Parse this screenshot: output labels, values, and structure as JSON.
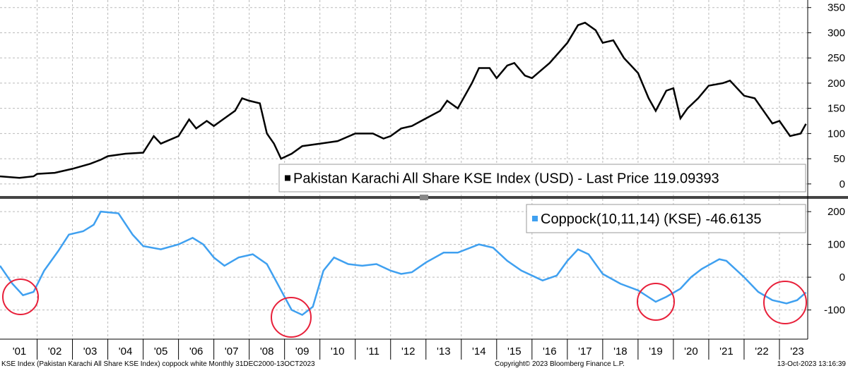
{
  "chart_data": [
    {
      "type": "line",
      "xlim": [
        2000.95,
        2023.8
      ],
      "ylim": [
        -24,
        365
      ],
      "yticks": [
        0,
        50,
        100,
        150,
        200,
        250,
        300,
        350
      ],
      "grid": true,
      "series": [
        {
          "name": "Pakistan Karachi All Share KSE Index (USD) - Last Price",
          "color": "#000000",
          "x": [
            2000.95,
            2001.5,
            2001.9,
            2002.0,
            2002.5,
            2003.0,
            2003.5,
            2003.8,
            2004.0,
            2004.5,
            2005.0,
            2005.3,
            2005.5,
            2006.0,
            2006.3,
            2006.5,
            2006.8,
            2007.0,
            2007.3,
            2007.6,
            2007.8,
            2008.0,
            2008.3,
            2008.5,
            2008.7,
            2008.9,
            2009.2,
            2009.5,
            2010.0,
            2010.5,
            2011.0,
            2011.5,
            2011.8,
            2012.0,
            2012.3,
            2012.6,
            2013.0,
            2013.4,
            2013.6,
            2013.9,
            2014.3,
            2014.5,
            2014.8,
            2015.0,
            2015.3,
            2015.5,
            2015.8,
            2016.0,
            2016.5,
            2017.0,
            2017.3,
            2017.5,
            2017.8,
            2018.0,
            2018.3,
            2018.6,
            2019.0,
            2019.3,
            2019.5,
            2019.8,
            2020.0,
            2020.2,
            2020.4,
            2020.7,
            2021.0,
            2021.4,
            2021.6,
            2022.0,
            2022.3,
            2022.6,
            2022.8,
            2023.0,
            2023.3,
            2023.6,
            2023.75
          ],
          "values": [
            15,
            12,
            15,
            20,
            22,
            30,
            40,
            48,
            55,
            60,
            62,
            95,
            80,
            95,
            128,
            110,
            125,
            115,
            130,
            145,
            170,
            165,
            160,
            100,
            80,
            50,
            60,
            75,
            80,
            85,
            100,
            100,
            90,
            95,
            110,
            115,
            130,
            145,
            165,
            150,
            200,
            230,
            230,
            210,
            235,
            240,
            215,
            210,
            240,
            280,
            315,
            320,
            305,
            280,
            285,
            250,
            220,
            170,
            145,
            185,
            190,
            130,
            150,
            170,
            195,
            200,
            205,
            175,
            170,
            140,
            120,
            125,
            95,
            100,
            119.09393
          ]
        }
      ]
    },
    {
      "type": "line",
      "xlim": [
        2000.95,
        2023.8
      ],
      "ylim": [
        -189,
        239
      ],
      "yticks": [
        -100,
        0,
        100,
        200
      ],
      "grid": true,
      "xticks": [
        {
          "value": 2001.5,
          "label": "'01"
        },
        {
          "value": 2002.5,
          "label": "'02"
        },
        {
          "value": 2003.5,
          "label": "'03"
        },
        {
          "value": 2004.5,
          "label": "'04"
        },
        {
          "value": 2005.5,
          "label": "'05"
        },
        {
          "value": 2006.5,
          "label": "'06"
        },
        {
          "value": 2007.5,
          "label": "'07"
        },
        {
          "value": 2008.5,
          "label": "'08"
        },
        {
          "value": 2009.5,
          "label": "'09"
        },
        {
          "value": 2010.5,
          "label": "'10"
        },
        {
          "value": 2011.5,
          "label": "'11"
        },
        {
          "value": 2012.5,
          "label": "'12"
        },
        {
          "value": 2013.5,
          "label": "'13"
        },
        {
          "value": 2014.5,
          "label": "'14"
        },
        {
          "value": 2015.5,
          "label": "'15"
        },
        {
          "value": 2016.5,
          "label": "'16"
        },
        {
          "value": 2017.5,
          "label": "'17"
        },
        {
          "value": 2018.5,
          "label": "'18"
        },
        {
          "value": 2019.5,
          "label": "'19"
        },
        {
          "value": 2020.5,
          "label": "'20"
        },
        {
          "value": 2021.5,
          "label": "'21"
        },
        {
          "value": 2022.5,
          "label": "'22"
        },
        {
          "value": 2023.5,
          "label": "'23"
        }
      ],
      "series": [
        {
          "name": "Coppock(10,11,14) (KSE)",
          "color": "#3fa0f0",
          "x": [
            2000.95,
            2001.3,
            2001.6,
            2001.9,
            2002.2,
            2002.6,
            2002.9,
            2003.3,
            2003.6,
            2003.8,
            2004.3,
            2004.7,
            2005.0,
            2005.5,
            2006.0,
            2006.4,
            2006.7,
            2007.0,
            2007.3,
            2007.7,
            2008.1,
            2008.5,
            2008.9,
            2009.2,
            2009.5,
            2009.8,
            2010.1,
            2010.4,
            2010.8,
            2011.2,
            2011.6,
            2012.0,
            2012.3,
            2012.6,
            2013.0,
            2013.5,
            2013.9,
            2014.5,
            2014.9,
            2015.3,
            2015.7,
            2016.0,
            2016.3,
            2016.7,
            2017.0,
            2017.3,
            2017.6,
            2018.0,
            2018.5,
            2019.0,
            2019.5,
            2019.8,
            2020.2,
            2020.5,
            2020.8,
            2021.3,
            2021.5,
            2022.0,
            2022.4,
            2022.8,
            2023.2,
            2023.5,
            2023.75
          ],
          "values": [
            35,
            -20,
            -55,
            -45,
            20,
            80,
            130,
            140,
            160,
            200,
            195,
            130,
            95,
            85,
            100,
            120,
            100,
            60,
            35,
            60,
            70,
            40,
            -40,
            -100,
            -115,
            -90,
            20,
            60,
            40,
            35,
            40,
            20,
            10,
            15,
            45,
            75,
            75,
            100,
            90,
            50,
            20,
            5,
            -10,
            5,
            50,
            85,
            70,
            10,
            -20,
            -40,
            -75,
            -60,
            -35,
            0,
            25,
            55,
            50,
            0,
            -45,
            -70,
            -80,
            -70,
            -46.6135
          ]
        }
      ]
    }
  ],
  "footer": {
    "left": "KSE Index (Pakistan Karachi All Share KSE Index) coppock white  Monthly 31DEC2000-13OCT2023",
    "center": "Copyright© 2023 Bloomberg Finance L.P.",
    "right": "13-Oct-2023 13:16:39"
  }
}
